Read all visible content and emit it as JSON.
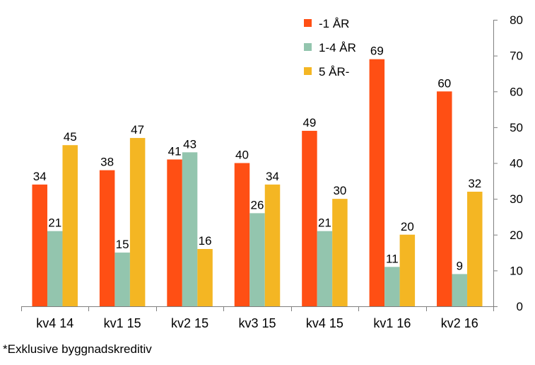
{
  "chart_data": {
    "type": "bar",
    "categories": [
      "kv4 14",
      "kv1 15",
      "kv2 15",
      "kv3 15",
      "kv4 15",
      "kv1 16",
      "kv2 16"
    ],
    "series": [
      {
        "name": "-1 ÅR",
        "color": "#FF4F14",
        "values": [
          34,
          38,
          41,
          40,
          49,
          69,
          60
        ]
      },
      {
        "name": "1-4 ÅR",
        "color": "#93C5AE",
        "values": [
          21,
          15,
          43,
          26,
          21,
          11,
          9
        ]
      },
      {
        "name": "5 ÅR-",
        "color": "#F4B623",
        "values": [
          45,
          47,
          16,
          34,
          30,
          20,
          32
        ]
      }
    ],
    "ylim": [
      0,
      80
    ],
    "yticks": [
      0,
      10,
      20,
      30,
      40,
      50,
      60,
      70,
      80
    ],
    "y_axis_side": "right",
    "grid": false,
    "legend_position": "top-right",
    "data_labels": true
  },
  "footnote": "*Exklusive byggnadskreditiv"
}
